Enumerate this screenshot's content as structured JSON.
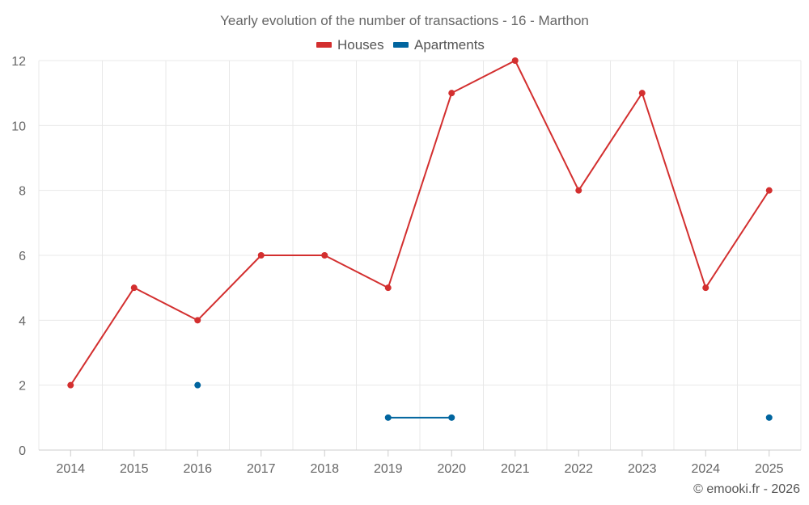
{
  "chart_data": {
    "type": "line",
    "title": "Yearly evolution of the number of transactions - 16 - Marthon",
    "xlabel": "",
    "ylabel": "",
    "categories": [
      "2014",
      "2015",
      "2016",
      "2017",
      "2018",
      "2019",
      "2020",
      "2021",
      "2022",
      "2023",
      "2024",
      "2025"
    ],
    "ylim": [
      0,
      12
    ],
    "yticks": [
      "0",
      "2",
      "4",
      "6",
      "8",
      "10",
      "12"
    ],
    "grid": true,
    "legend_position": "top-center",
    "series": [
      {
        "name": "Houses",
        "color": "#d32f2f",
        "values": [
          2,
          5,
          4,
          6,
          6,
          5,
          11,
          12,
          8,
          11,
          5,
          8
        ]
      },
      {
        "name": "Apartments",
        "color": "#01659f",
        "values": [
          null,
          null,
          2,
          null,
          null,
          1,
          1,
          null,
          null,
          null,
          null,
          1
        ]
      }
    ],
    "credit": "© emooki.fr - 2026"
  }
}
